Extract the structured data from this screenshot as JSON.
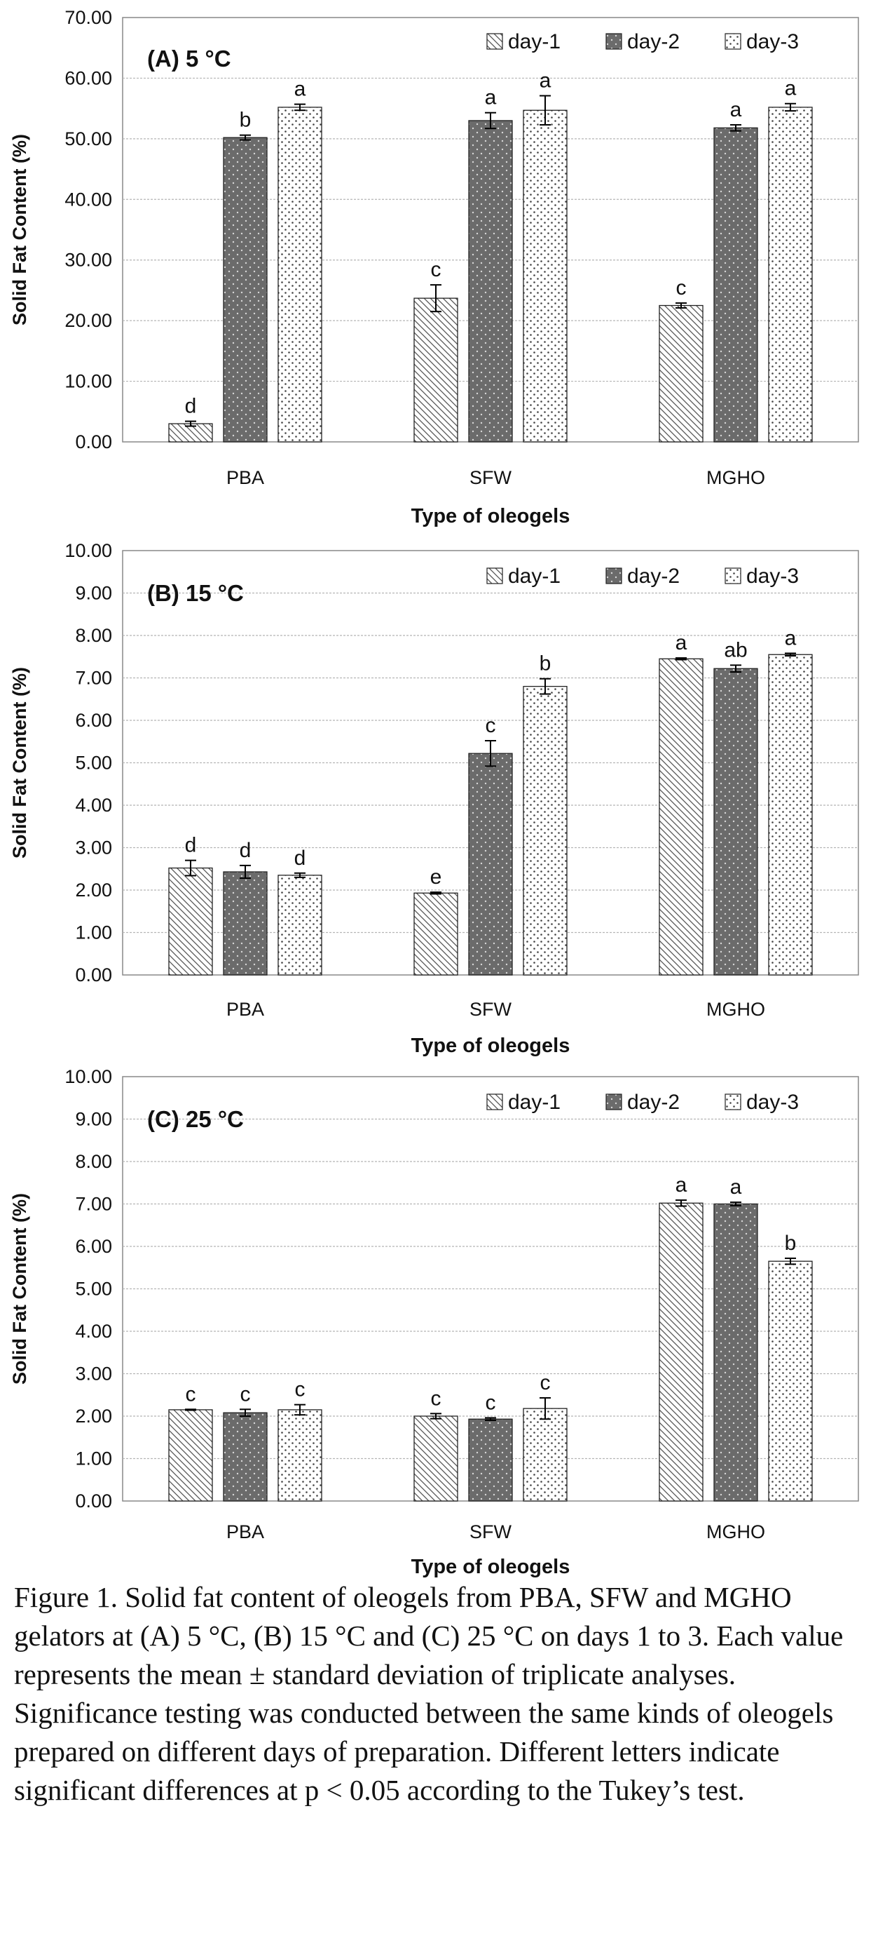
{
  "chart_data": [
    {
      "type": "bar",
      "title": "(A) 5 °C",
      "xlabel": "Type of oleogels",
      "ylabel": "Solid Fat Content (%)",
      "ylim": [
        0,
        70
      ],
      "yticks": [
        "0.00",
        "10.00",
        "20.00",
        "30.00",
        "40.00",
        "50.00",
        "60.00",
        "70.00"
      ],
      "grid": true,
      "legend_position": "top-right",
      "categories": [
        "PBA",
        "SFW",
        "MGHO"
      ],
      "series": [
        {
          "name": "day-1",
          "pattern": "diagonal",
          "values": [
            3.0,
            23.7,
            22.5
          ],
          "errors": [
            0.4,
            2.2,
            0.4
          ],
          "letters": [
            "d",
            "c",
            "c"
          ]
        },
        {
          "name": "day-2",
          "pattern": "dark-dots",
          "values": [
            50.2,
            53.0,
            51.8
          ],
          "errors": [
            0.4,
            1.3,
            0.5
          ],
          "letters": [
            "b",
            "a",
            "a"
          ]
        },
        {
          "name": "day-3",
          "pattern": "light-dots",
          "values": [
            55.2,
            54.7,
            55.2
          ],
          "errors": [
            0.5,
            2.4,
            0.6
          ],
          "letters": [
            "a",
            "a",
            "a"
          ]
        }
      ]
    },
    {
      "type": "bar",
      "title": "(B) 15 °C",
      "xlabel": "Type of oleogels",
      "ylabel": "Solid Fat Content (%)",
      "ylim": [
        0,
        10
      ],
      "yticks": [
        "0.00",
        "1.00",
        "2.00",
        "3.00",
        "4.00",
        "5.00",
        "6.00",
        "7.00",
        "8.00",
        "9.00",
        "10.00"
      ],
      "grid": true,
      "legend_position": "top-right",
      "categories": [
        "PBA",
        "SFW",
        "MGHO"
      ],
      "series": [
        {
          "name": "day-1",
          "pattern": "diagonal",
          "values": [
            2.52,
            1.93,
            7.45
          ],
          "errors": [
            0.18,
            0.02,
            0.02
          ],
          "letters": [
            "d",
            "e",
            "a"
          ]
        },
        {
          "name": "day-2",
          "pattern": "dark-dots",
          "values": [
            2.43,
            5.22,
            7.22
          ],
          "errors": [
            0.15,
            0.3,
            0.08
          ],
          "letters": [
            "d",
            "c",
            "ab"
          ]
        },
        {
          "name": "day-3",
          "pattern": "light-dots",
          "values": [
            2.35,
            6.8,
            7.55
          ],
          "errors": [
            0.05,
            0.18,
            0.03
          ],
          "letters": [
            "d",
            "b",
            "a"
          ]
        }
      ]
    },
    {
      "type": "bar",
      "title": "(C) 25 °C",
      "xlabel": "Type of oleogels",
      "ylabel": "Solid Fat Content (%)",
      "ylim": [
        0,
        10
      ],
      "yticks": [
        "0.00",
        "1.00",
        "2.00",
        "3.00",
        "4.00",
        "5.00",
        "6.00",
        "7.00",
        "8.00",
        "9.00",
        "10.00"
      ],
      "grid": true,
      "legend_position": "top-right",
      "categories": [
        "PBA",
        "SFW",
        "MGHO"
      ],
      "series": [
        {
          "name": "day-1",
          "pattern": "diagonal",
          "values": [
            2.15,
            2.0,
            7.02
          ],
          "errors": [
            0.01,
            0.06,
            0.07
          ],
          "letters": [
            "c",
            "c",
            "a"
          ]
        },
        {
          "name": "day-2",
          "pattern": "dark-dots",
          "values": [
            2.08,
            1.93,
            7.0
          ],
          "errors": [
            0.08,
            0.03,
            0.04
          ],
          "letters": [
            "c",
            "c",
            "a"
          ]
        },
        {
          "name": "day-3",
          "pattern": "light-dots",
          "values": [
            2.15,
            2.18,
            5.65
          ],
          "errors": [
            0.12,
            0.25,
            0.07
          ],
          "letters": [
            "c",
            "c",
            "b"
          ]
        }
      ]
    }
  ],
  "caption": "Figure 1. Solid fat content of oleogels from PBA, SFW and MGHO gelators at (A) 5 °C, (B) 15 °C and (C) 25 °C on days 1 to 3. Each value represents the mean ± standard deviation of triplicate analyses. Significance testing was conducted between the same kinds of oleogels prepared on different days of preparation. Different letters indicate significant differences at p < 0.05 according to the Tukey’s test."
}
